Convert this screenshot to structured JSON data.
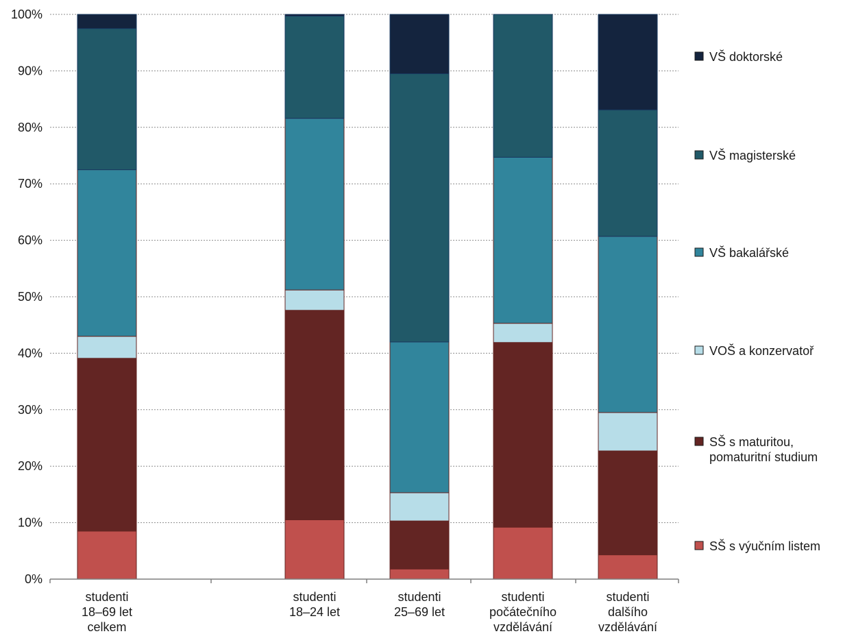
{
  "chart_data": {
    "type": "bar",
    "stacked": true,
    "percent_axis": true,
    "ylim": [
      0,
      100
    ],
    "yticks": [
      0,
      10,
      20,
      30,
      40,
      50,
      60,
      70,
      80,
      90,
      100
    ],
    "ytick_suffix": "%",
    "grid": "horizontal dotted",
    "legend_position": "right",
    "categories": [
      [
        "studenti",
        "18–69 let",
        "celkem"
      ],
      [
        "studenti",
        "18–24 let"
      ],
      [
        "studenti",
        "25–69 let"
      ],
      [
        "studenti",
        "počátečního",
        "vzdělávání"
      ],
      [
        "studenti",
        "dalšího",
        "vzdělávání"
      ]
    ],
    "series": [
      {
        "name": "SŠ s výučním listem",
        "color": "#c0504d",
        "values": [
          8.5,
          10.5,
          1.8,
          9.2,
          4.3
        ]
      },
      {
        "name": "SŠ s maturitou, pomaturitní studium",
        "color": "#632523",
        "values": [
          30.6,
          37.1,
          8.5,
          32.7,
          18.4
        ]
      },
      {
        "name": "VOŠ a konzervatoř",
        "color": "#b7dde8",
        "values": [
          3.9,
          3.6,
          5.0,
          3.4,
          6.8
        ]
      },
      {
        "name": "VŠ bakalářské",
        "color": "#31859c",
        "values": [
          29.5,
          30.4,
          26.7,
          29.4,
          31.2
        ]
      },
      {
        "name": "VŠ magisterské",
        "color": "#215968",
        "values": [
          25.0,
          18.1,
          47.5,
          25.3,
          22.4
        ]
      },
      {
        "name": "VŠ doktorské",
        "color": "#14243e",
        "values": [
          2.5,
          0.3,
          10.5,
          0.0,
          16.9
        ]
      }
    ],
    "legend_lines": [
      [
        "VŠ doktorské"
      ],
      [
        "VŠ magisterské"
      ],
      [
        "VŠ bakalářské"
      ],
      [
        "VOŠ a konzervatoř"
      ],
      [
        "SŠ s maturitou,",
        "pomaturitní studium"
      ],
      [
        "SŠ s výučním listem"
      ]
    ]
  }
}
